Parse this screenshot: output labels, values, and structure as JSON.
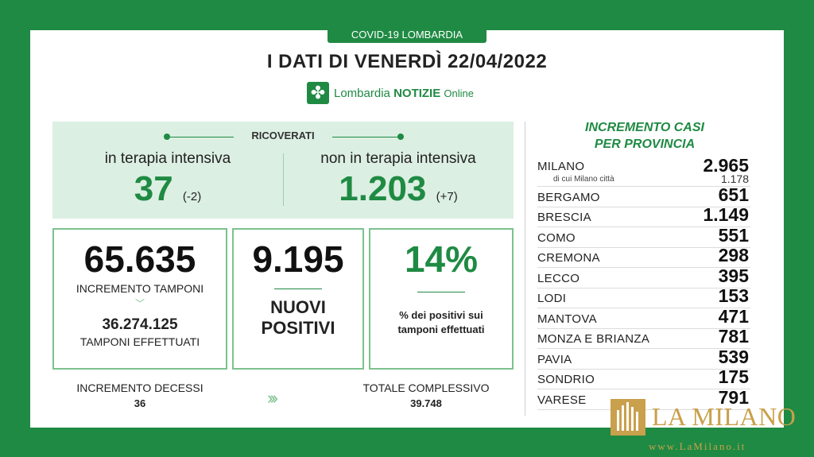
{
  "header": {
    "tag": "COVID-19 LOMBARDIA",
    "title": "I DATI DI VENERDÌ 22/04/2022",
    "brand_word1": "Lombardia",
    "brand_word2": "NOTIZIE",
    "brand_word3": "Online"
  },
  "ricoverati": {
    "label": "RICOVERATI",
    "intensive_label": "in terapia intensiva",
    "intensive_value": "37",
    "intensive_delta": "(-2)",
    "non_intensive_label": "non in terapia intensiva",
    "non_intensive_value": "1.203",
    "non_intensive_delta": "(+7)"
  },
  "tamponi": {
    "increment_value": "65.635",
    "increment_label": "INCREMENTO TAMPONI",
    "total_value": "36.274.125",
    "total_label": "TAMPONI EFFETTUATI"
  },
  "positivi": {
    "value": "9.195",
    "label_line1": "NUOVI",
    "label_line2": "POSITIVI"
  },
  "percentuale": {
    "value": "14%",
    "label_line1": "% dei positivi sui",
    "label_line2": "tamponi effettuati"
  },
  "decessi": {
    "increment_label": "INCREMENTO DECESSI",
    "increment_value": "36",
    "total_label": "TOTALE COMPLESSIVO",
    "total_value": "39.748"
  },
  "province": {
    "title_line1": "INCREMENTO CASI",
    "title_line2": "PER PROVINCIA",
    "milano": {
      "name": "MILANO",
      "value": "2.965",
      "city_label": "di cui Milano città",
      "city_value": "1.178"
    },
    "rows": [
      {
        "name": "BERGAMO",
        "value": "651"
      },
      {
        "name": "BRESCIA",
        "value": "1.149"
      },
      {
        "name": "COMO",
        "value": "551"
      },
      {
        "name": "CREMONA",
        "value": "298"
      },
      {
        "name": "LECCO",
        "value": "395"
      },
      {
        "name": "LODI",
        "value": "153"
      },
      {
        "name": "MANTOVA",
        "value": "471"
      },
      {
        "name": "MONZA E BRIANZA",
        "value": "781"
      },
      {
        "name": "PAVIA",
        "value": "539"
      },
      {
        "name": "SONDRIO",
        "value": "175"
      },
      {
        "name": "VARESE",
        "value": "791"
      }
    ]
  },
  "watermark": {
    "name": "LA MILANO",
    "url": "www.LaMilano.it"
  },
  "colors": {
    "brand_green": "#1f8a43",
    "light_green": "#dcefe3",
    "gold": "#c9a04b"
  }
}
